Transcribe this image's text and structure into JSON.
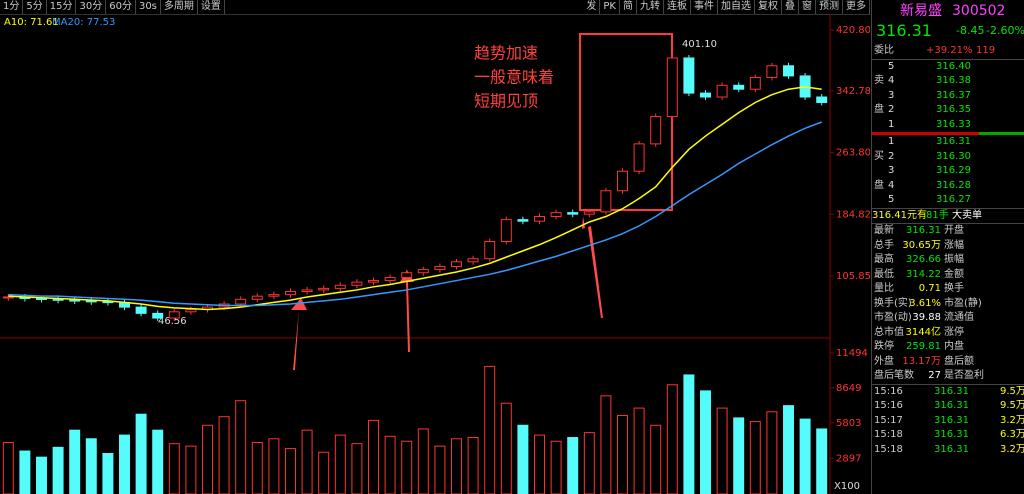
{
  "toolbar": {
    "left": [
      "1分",
      "5分",
      "15分",
      "30分",
      "60分",
      "30s",
      "多周期",
      "设置"
    ],
    "right": [
      "发",
      "PK",
      "简",
      "九转",
      "连板",
      "事件",
      "加自选",
      "复权",
      "叠",
      "窗",
      "预测",
      "更多"
    ]
  },
  "chart_data": {
    "type": "candlestick",
    "ma_labels": [
      "A10: 71.61",
      "MA20: 77.53"
    ],
    "close": [
      79,
      77,
      76,
      75,
      74,
      73,
      72,
      66,
      58,
      52,
      60,
      63,
      66,
      70,
      76,
      80,
      82,
      86,
      88,
      90,
      94,
      98,
      100,
      104,
      110,
      114,
      118,
      124,
      128,
      150,
      178,
      176,
      182,
      187,
      185,
      188,
      215,
      240,
      275,
      310,
      385,
      340,
      335,
      350,
      345,
      360,
      375,
      362,
      335,
      328
    ],
    "ma10": [
      80,
      79,
      78,
      77,
      76,
      75,
      74,
      72,
      70,
      67,
      65,
      64,
      63,
      64,
      66,
      69,
      72,
      75,
      79,
      82,
      85,
      88,
      92,
      95,
      99,
      103,
      107,
      111,
      116,
      122,
      130,
      138,
      146,
      155,
      165,
      175,
      182,
      192,
      205,
      220,
      245,
      268,
      285,
      300,
      315,
      328,
      338,
      345,
      348,
      345
    ],
    "ma20": [
      82,
      81,
      80,
      80,
      79,
      78,
      77,
      76,
      75,
      73,
      71,
      70,
      69,
      68,
      68,
      68,
      69,
      70,
      72,
      74,
      76,
      79,
      82,
      85,
      88,
      92,
      96,
      100,
      104,
      108,
      113,
      119,
      125,
      131,
      138,
      145,
      152,
      160,
      170,
      182,
      196,
      210,
      223,
      236,
      250,
      262,
      274,
      285,
      295,
      303
    ],
    "ylim": [
      30.3,
      433.6
    ],
    "yticks": [
      {
        "value": 420.8,
        "label": "420.80"
      },
      {
        "value": 342.78,
        "label": "342.78"
      },
      {
        "value": 263.8,
        "label": "263.80"
      },
      {
        "value": 184.82,
        "label": "184.82"
      },
      {
        "value": 105.85,
        "label": "105.85"
      }
    ],
    "high_label": "401.10",
    "low_label": "46.56",
    "annotation": [
      "趋势加速",
      "一般意味着",
      "短期见顶"
    ],
    "volume": [
      4200,
      3500,
      3000,
      3800,
      5200,
      4500,
      3300,
      4800,
      6500,
      5200,
      4100,
      3900,
      5600,
      6300,
      7600,
      4200,
      4500,
      3700,
      5200,
      3400,
      4800,
      4100,
      6000,
      4700,
      4300,
      5300,
      3900,
      4500,
      4600,
      10400,
      7400,
      5600,
      4800,
      4300,
      4600,
      5000,
      8000,
      6400,
      7000,
      5600,
      8900,
      9700,
      8400,
      7000,
      6200,
      5900,
      6700,
      7200,
      6100,
      5300
    ],
    "vlim": [
      0,
      12140
    ],
    "vticks": [
      11494,
      8649,
      5803,
      2897
    ],
    "vunit": "X100",
    "up_color": "#ff3232",
    "down_color": "#54fcfc",
    "ma10_color": "#ffff00",
    "ma20_color": "#3399ff"
  },
  "panel": {
    "name": "新易盛",
    "code": "300502",
    "price": "316.31",
    "change": "-8.45",
    "pct": "-2.60%",
    "ratio_label": "委比",
    "ratio": "+39.21%",
    "ratio_num": "119",
    "sell_label": [
      "卖",
      "盘"
    ],
    "buy_label": [
      "买",
      "盘"
    ],
    "sell": [
      [
        "5",
        "316.40"
      ],
      [
        "4",
        "316.38"
      ],
      [
        "3",
        "316.37"
      ],
      [
        "2",
        "316.35"
      ],
      [
        "1",
        "316.33"
      ]
    ],
    "buy": [
      [
        "1",
        "316.31"
      ],
      [
        "2",
        "316.30"
      ],
      [
        "3",
        "316.29"
      ],
      [
        "4",
        "316.28"
      ],
      [
        "5",
        "316.27"
      ]
    ],
    "order": [
      "316.41元有",
      "81手",
      "大卖单"
    ],
    "stats": [
      {
        "k": "最新",
        "v": "316.31",
        "k2": "开盘",
        "color": "#00e600"
      },
      {
        "k": "总手",
        "v": "30.65万",
        "k2": "涨幅",
        "color": "#ffff00"
      },
      {
        "k": "最高",
        "v": "326.66",
        "k2": "振幅",
        "color": "#00e600"
      },
      {
        "k": "最低",
        "v": "314.22",
        "k2": "金额",
        "color": "#00e600"
      },
      {
        "k": "量比",
        "v": "0.71",
        "k2": "换手",
        "color": "#ffff00"
      },
      {
        "k": "换手(实)",
        "v": "3.61%",
        "k2": "市盈(静)",
        "color": "#ffff00"
      },
      {
        "k": "市盈(动)",
        "v": "39.88",
        "k2": "流通值",
        "color": "#ffffff"
      },
      {
        "k": "总市值",
        "v": "3144亿",
        "k2": "涨停",
        "color": "#ffff00"
      },
      {
        "k": "跌停",
        "v": "259.81",
        "k2": "内盘",
        "color": "#00e600"
      },
      {
        "k": "外盘",
        "v": "13.17万",
        "k2": "盘后额",
        "color": "#ff3232"
      },
      {
        "k": "盘后笔数",
        "v": "27",
        "k2": "是否盈利",
        "color": "#ffffff"
      }
    ],
    "trades": [
      [
        "15:16",
        "316.31",
        "9.5万"
      ],
      [
        "15:16",
        "316.31",
        "9.5万"
      ],
      [
        "15:17",
        "316.31",
        "3.2万"
      ],
      [
        "15:18",
        "316.31",
        "6.3万"
      ],
      [
        "15:18",
        "316.31",
        "3.2万"
      ]
    ]
  }
}
